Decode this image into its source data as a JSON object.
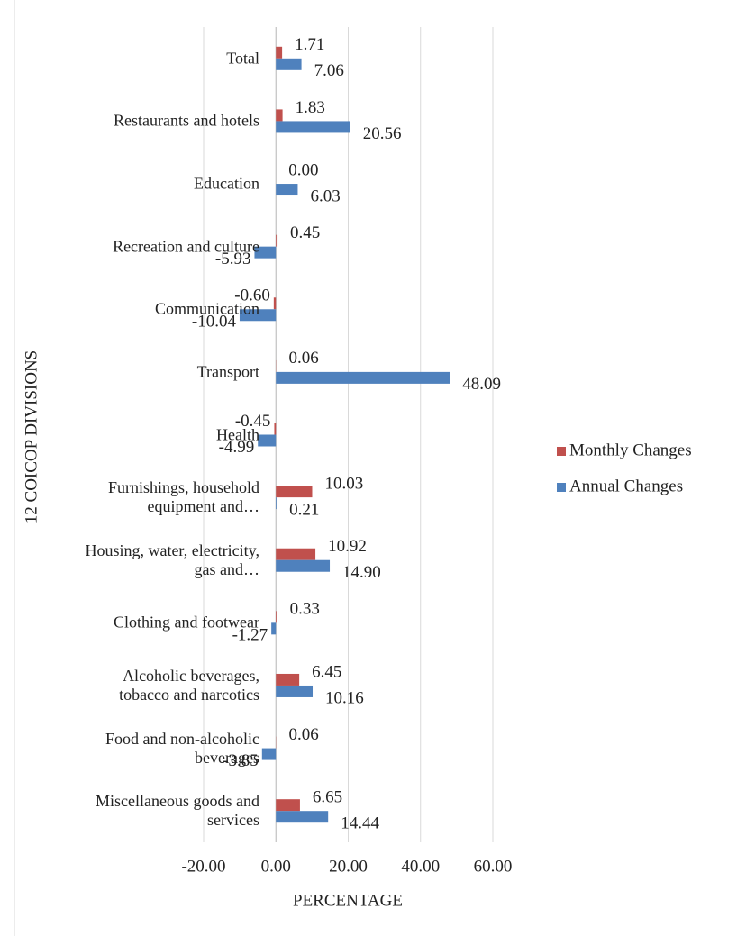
{
  "chart_data": {
    "type": "hbar",
    "x_label": "PERCENTAGE",
    "y_label": "12 COICOP DIVISIONS",
    "categories": [
      "Total",
      "Restaurants and hotels",
      "Education",
      "Recreation and culture",
      "Communication",
      "Transport",
      "Health",
      "Furnishings, household equipment and…",
      "Housing, water, electricity, gas and…",
      "Clothing and footwear",
      "Alcoholic beverages, tobacco and narcotics",
      "Food and non-alcoholic beverages",
      "Miscellaneous goods and services"
    ],
    "series": [
      {
        "name": "Monthly Changes",
        "color": "#c0504d",
        "values": [
          1.71,
          1.83,
          0,
          0.45,
          -0.6,
          0.06,
          -0.45,
          10.03,
          10.92,
          0.33,
          6.45,
          0.06,
          6.65
        ],
        "value_labels": [
          "1.71",
          "1.83",
          "0.00",
          "0.45",
          "-0.60",
          "0.06",
          "-0.45",
          "10.03",
          "10.92",
          "0.33",
          "6.45",
          "0.06",
          "6.65"
        ]
      },
      {
        "name": "Annual Changes",
        "color": "#4f81bd",
        "values": [
          7.06,
          20.56,
          6.03,
          -5.93,
          -10.04,
          48.09,
          -4.99,
          0.21,
          14.9,
          -1.27,
          10.16,
          -3.85,
          14.44
        ],
        "value_labels": [
          "7.06",
          "20.56",
          "6.03",
          "-5.93",
          "-10.04",
          "48.09",
          "-4.99",
          "0.21",
          "14.90",
          "-1.27",
          "10.16",
          "-3.85",
          "14.44"
        ]
      }
    ],
    "xlim": [
      -20,
      60
    ],
    "xticks": [
      {
        "value": -20,
        "label": "-20.00"
      },
      {
        "value": 0,
        "label": "0.00"
      },
      {
        "value": 20,
        "label": "20.00"
      },
      {
        "value": 40,
        "label": "40.00"
      },
      {
        "value": 60,
        "label": "60.00"
      }
    ],
    "grid": true,
    "legend": "right"
  }
}
